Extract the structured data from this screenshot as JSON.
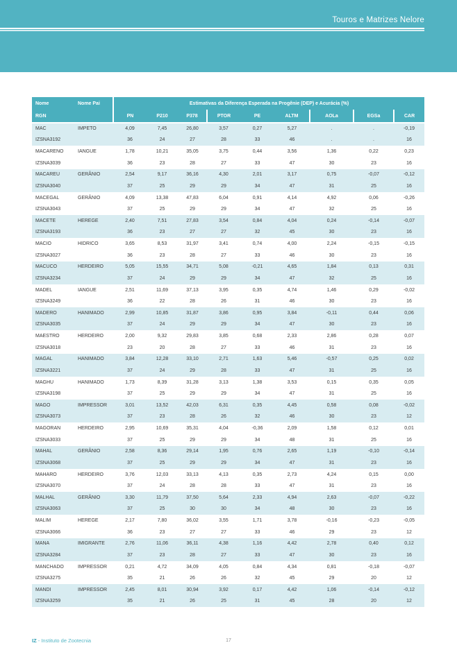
{
  "page": {
    "title": "Touros e Matrizes Nelore",
    "footer_org_bold": "IZ",
    "footer_org_rest": " - Instituto de Zootecnia",
    "page_number": "17"
  },
  "colors": {
    "teal_band": "#52b3c2",
    "table_header": "#4aafbe",
    "row_alt": "#d8ecf1",
    "footer_teal": "#56b7c6",
    "footer_teal_bold": "#2f9fb4"
  },
  "table": {
    "col_nome": "Nome",
    "col_nome_pai": "Nome Pai",
    "col_rgn": "RGN",
    "span_header": "Estimativas da Diferença Esperada na Progênie (DEP) e Acurácia (%)",
    "dep_columns": [
      "PN",
      "P210",
      "P378",
      "PTOR",
      "PE",
      "ALTM",
      "AOLa",
      "EGSa",
      "CAR"
    ],
    "animals": [
      {
        "nome": "MAC",
        "pai": "IMPETO",
        "rgn": "IZSNA3192",
        "dep": [
          "4,09",
          "7,45",
          "26,80",
          "3,57",
          "0,27",
          "5,27",
          ".",
          ".",
          "-0,19"
        ],
        "acc": [
          "36",
          "24",
          "27",
          "28",
          "33",
          "46",
          ".",
          ".",
          "16"
        ]
      },
      {
        "nome": "MACARENO",
        "pai": "IANGUE",
        "rgn": "IZSNA3039",
        "dep": [
          "1,78",
          "10,21",
          "35,05",
          "3,75",
          "0,44",
          "3,56",
          "1,36",
          "0,22",
          "0,23"
        ],
        "acc": [
          "36",
          "23",
          "28",
          "27",
          "33",
          "47",
          "30",
          "23",
          "16"
        ]
      },
      {
        "nome": "MACAREU",
        "pai": "GERÂNIO",
        "rgn": "IZSNA3040",
        "dep": [
          "2,54",
          "9,17",
          "36,16",
          "4,30",
          "2,01",
          "3,17",
          "0,75",
          "-0,07",
          "-0,12"
        ],
        "acc": [
          "37",
          "25",
          "29",
          "29",
          "34",
          "47",
          "31",
          "25",
          "16"
        ]
      },
      {
        "nome": "MACEGAL",
        "pai": "GERÂNIO",
        "rgn": "IZSNA3043",
        "dep": [
          "4,09",
          "13,38",
          "47,83",
          "6,04",
          "0,91",
          "4,14",
          "4,92",
          "0,06",
          "-0,26"
        ],
        "acc": [
          "37",
          "25",
          "29",
          "29",
          "34",
          "47",
          "32",
          "25",
          "16"
        ]
      },
      {
        "nome": "MACETE",
        "pai": "HEREGE",
        "rgn": "IZSNA3193",
        "dep": [
          "2,40",
          "7,51",
          "27,83",
          "3,54",
          "0,84",
          "4,04",
          "0,24",
          "-0,14",
          "-0,07"
        ],
        "acc": [
          "36",
          "23",
          "27",
          "27",
          "32",
          "45",
          "30",
          "23",
          "16"
        ]
      },
      {
        "nome": "MACIO",
        "pai": "HIDRICO",
        "rgn": "IZSNA3027",
        "dep": [
          "3,65",
          "8,53",
          "31,97",
          "3,41",
          "0,74",
          "4,00",
          "2,24",
          "-0,15",
          "-0,15"
        ],
        "acc": [
          "36",
          "23",
          "28",
          "27",
          "33",
          "46",
          "30",
          "23",
          "16"
        ]
      },
      {
        "nome": "MACUCO",
        "pai": "HERDEIRO",
        "rgn": "IZSNA3234",
        "dep": [
          "5,05",
          "15,55",
          "34,71",
          "5,08",
          "-0,21",
          "4,65",
          "1,84",
          "0,13",
          "0,31"
        ],
        "acc": [
          "37",
          "24",
          "29",
          "29",
          "34",
          "47",
          "32",
          "25",
          "16"
        ]
      },
      {
        "nome": "MADEL",
        "pai": "IANGUE",
        "rgn": "IZSNA3249",
        "dep": [
          "2,51",
          "11,69",
          "37,13",
          "3,95",
          "0,35",
          "4,74",
          "1,46",
          "0,29",
          "-0,02"
        ],
        "acc": [
          "36",
          "22",
          "28",
          "26",
          "31",
          "46",
          "30",
          "23",
          "16"
        ]
      },
      {
        "nome": "MADERO",
        "pai": "HANIMADO",
        "rgn": "IZSNA3035",
        "dep": [
          "2,99",
          "10,85",
          "31,87",
          "3,86",
          "0,95",
          "3,84",
          "-0,11",
          "0,44",
          "0,06"
        ],
        "acc": [
          "37",
          "24",
          "29",
          "29",
          "34",
          "47",
          "30",
          "23",
          "16"
        ]
      },
      {
        "nome": "MAESTRO",
        "pai": "HERDEIRO",
        "rgn": "IZSNA3018",
        "dep": [
          "2,00",
          "9,32",
          "29,83",
          "3,85",
          "0,68",
          "2,33",
          "2,86",
          "0,28",
          "0,07"
        ],
        "acc": [
          "23",
          "20",
          "28",
          "27",
          "33",
          "46",
          "31",
          "23",
          "16"
        ]
      },
      {
        "nome": "MAGAL",
        "pai": "HANIMADO",
        "rgn": "IZSNA3221",
        "dep": [
          "3,84",
          "12,28",
          "33,10",
          "2,71",
          "1,63",
          "5,46",
          "-0,57",
          "0,25",
          "0,02"
        ],
        "acc": [
          "37",
          "24",
          "29",
          "28",
          "33",
          "47",
          "31",
          "25",
          "16"
        ]
      },
      {
        "nome": "MAGHU",
        "pai": "HANIMADO",
        "rgn": "IZSNA3198",
        "dep": [
          "1,73",
          "8,39",
          "31,28",
          "3,13",
          "1,38",
          "3,53",
          "0,15",
          "0,35",
          "0,05"
        ],
        "acc": [
          "37",
          "25",
          "29",
          "29",
          "34",
          "47",
          "31",
          "25",
          "16"
        ]
      },
      {
        "nome": "MAGO",
        "pai": "IMPRESSOR",
        "rgn": "IZSNA3073",
        "dep": [
          "3,01",
          "13,52",
          "42,03",
          "6,31",
          "0,35",
          "4,45",
          "0,58",
          "0,08",
          "-0,02"
        ],
        "acc": [
          "37",
          "23",
          "28",
          "26",
          "32",
          "46",
          "30",
          "23",
          "12"
        ]
      },
      {
        "nome": "MAGORAN",
        "pai": "HERDEIRO",
        "rgn": "IZSNA3033",
        "dep": [
          "2,95",
          "10,69",
          "35,31",
          "4,04",
          "-0,36",
          "2,09",
          "1,58",
          "0,12",
          "0,01"
        ],
        "acc": [
          "37",
          "25",
          "29",
          "29",
          "34",
          "48",
          "31",
          "25",
          "16"
        ]
      },
      {
        "nome": "MAHAL",
        "pai": "GERÂNIO",
        "rgn": "IZSNA3068",
        "dep": [
          "2,58",
          "8,36",
          "29,14",
          "1,95",
          "0,76",
          "2,65",
          "1,19",
          "-0,10",
          "-0,14"
        ],
        "acc": [
          "37",
          "25",
          "29",
          "29",
          "34",
          "47",
          "31",
          "23",
          "16"
        ]
      },
      {
        "nome": "MAHARO",
        "pai": "HERDEIRO",
        "rgn": "IZSNA3070",
        "dep": [
          "3,76",
          "12,03",
          "33,13",
          "4,13",
          "0,35",
          "2,73",
          "4,24",
          "0,15",
          "0,00"
        ],
        "acc": [
          "37",
          "24",
          "28",
          "28",
          "33",
          "47",
          "31",
          "23",
          "16"
        ]
      },
      {
        "nome": "MALHAL",
        "pai": "GERÂNIO",
        "rgn": "IZSNA3063",
        "dep": [
          "3,30",
          "11,79",
          "37,50",
          "5,64",
          "2,33",
          "4,94",
          "2,63",
          "-0,07",
          "-0,22"
        ],
        "acc": [
          "37",
          "25",
          "30",
          "30",
          "34",
          "48",
          "30",
          "23",
          "16"
        ]
      },
      {
        "nome": "MALIM",
        "pai": "HEREGE",
        "rgn": "IZSNA3066",
        "dep": [
          "2,17",
          "7,80",
          "36,02",
          "3,55",
          "1,71",
          "3,78",
          "-0,16",
          "-0,23",
          "-0,05"
        ],
        "acc": [
          "36",
          "23",
          "27",
          "27",
          "33",
          "46",
          "29",
          "23",
          "12"
        ]
      },
      {
        "nome": "MANA",
        "pai": "IMIGRANTE",
        "rgn": "IZSNA3284",
        "dep": [
          "2,76",
          "11,06",
          "36,11",
          "4,38",
          "1,16",
          "4,42",
          "2,78",
          "0,40",
          "0,12"
        ],
        "acc": [
          "37",
          "23",
          "28",
          "27",
          "33",
          "47",
          "30",
          "23",
          "16"
        ]
      },
      {
        "nome": "MANCHADO",
        "pai": "IMPRESSOR",
        "rgn": "IZSNA3275",
        "dep": [
          "0,21",
          "4,72",
          "34,09",
          "4,05",
          "0,84",
          "4,34",
          "0,81",
          "-0,18",
          "-0,07"
        ],
        "acc": [
          "35",
          "21",
          "26",
          "26",
          "32",
          "45",
          "29",
          "20",
          "12"
        ]
      },
      {
        "nome": "MANDI",
        "pai": "IMPRESSOR",
        "rgn": "IZSNA3259",
        "dep": [
          "2,45",
          "8,01",
          "30,94",
          "3,92",
          "0,17",
          "4,42",
          "1,06",
          "-0,14",
          "-0,12"
        ],
        "acc": [
          "35",
          "21",
          "26",
          "25",
          "31",
          "45",
          "28",
          "20",
          "12"
        ]
      }
    ]
  }
}
